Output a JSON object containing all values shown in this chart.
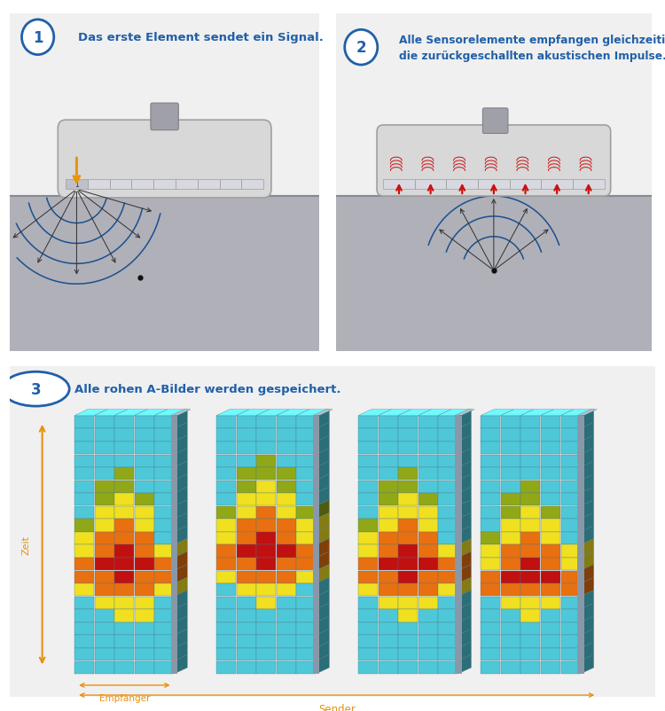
{
  "bg_color": "#ffffff",
  "panel_bg": "#f0f0f0",
  "panel_border": "#cccccc",
  "circle_color": "#2060a8",
  "text_color": "#2060a8",
  "title1": "Das erste Element sendet ein Signal.",
  "title2": "Alle Sensorelemente empfangen gleichzeitig\ndie zurückgeschallten akustischen Impulse.",
  "title3": "Alle rohen A-Bilder werden gespeichert.",
  "transducer_fill": "#d8d8d8",
  "transducer_edge": "#a0a0a0",
  "ground_fill": "#b0b0b8",
  "surface_line": "#888890",
  "wave_color": "#1a5090",
  "ray_color": "#303030",
  "yellow_arrow": "#e8960a",
  "red_recv": "#cc1010",
  "dot_color": "#101010",
  "grid_cyan": "#4ec8d8",
  "grid_yellow": "#f0e020",
  "grid_orange": "#e87010",
  "grid_red": "#c01010",
  "grid_olive": "#90a818",
  "grid_sep": "#8898a8",
  "grid_top": "#c0d0d8",
  "zeit_color": "#e89010",
  "sender_color": "#e89010",
  "label_color": "#606060"
}
